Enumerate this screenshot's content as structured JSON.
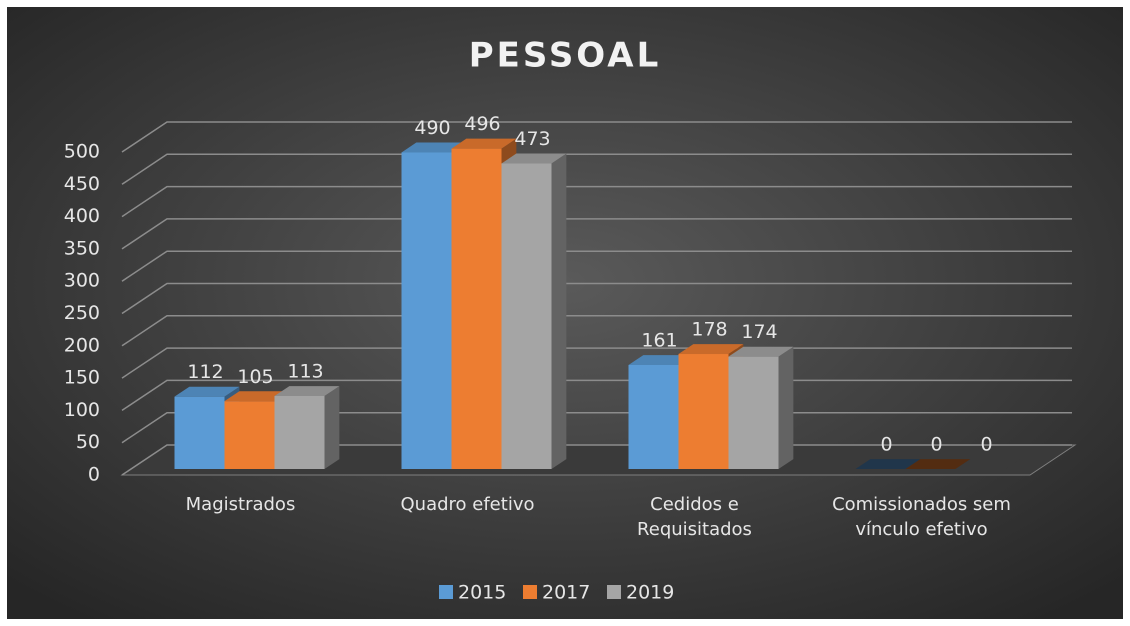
{
  "chart_data": {
    "type": "bar3d",
    "title": "PESSOAL",
    "categories": [
      "Magistrados",
      "Quadro efetivo",
      "Cedidos e Requisitados",
      "Comissionados sem vínculo efetivo"
    ],
    "series": [
      {
        "name": "2015",
        "color": "#5b9bd5",
        "values": [
          112,
          490,
          161,
          0
        ]
      },
      {
        "name": "2017",
        "color": "#ed7d31",
        "values": [
          105,
          496,
          178,
          0
        ]
      },
      {
        "name": "2019",
        "color": "#a5a5a5",
        "values": [
          113,
          473,
          174,
          0
        ]
      }
    ],
    "ylim": [
      0,
      500
    ],
    "yticks": [
      0,
      50,
      100,
      150,
      200,
      250,
      300,
      350,
      400,
      450,
      500
    ],
    "grid": true,
    "legend": "bottom"
  }
}
